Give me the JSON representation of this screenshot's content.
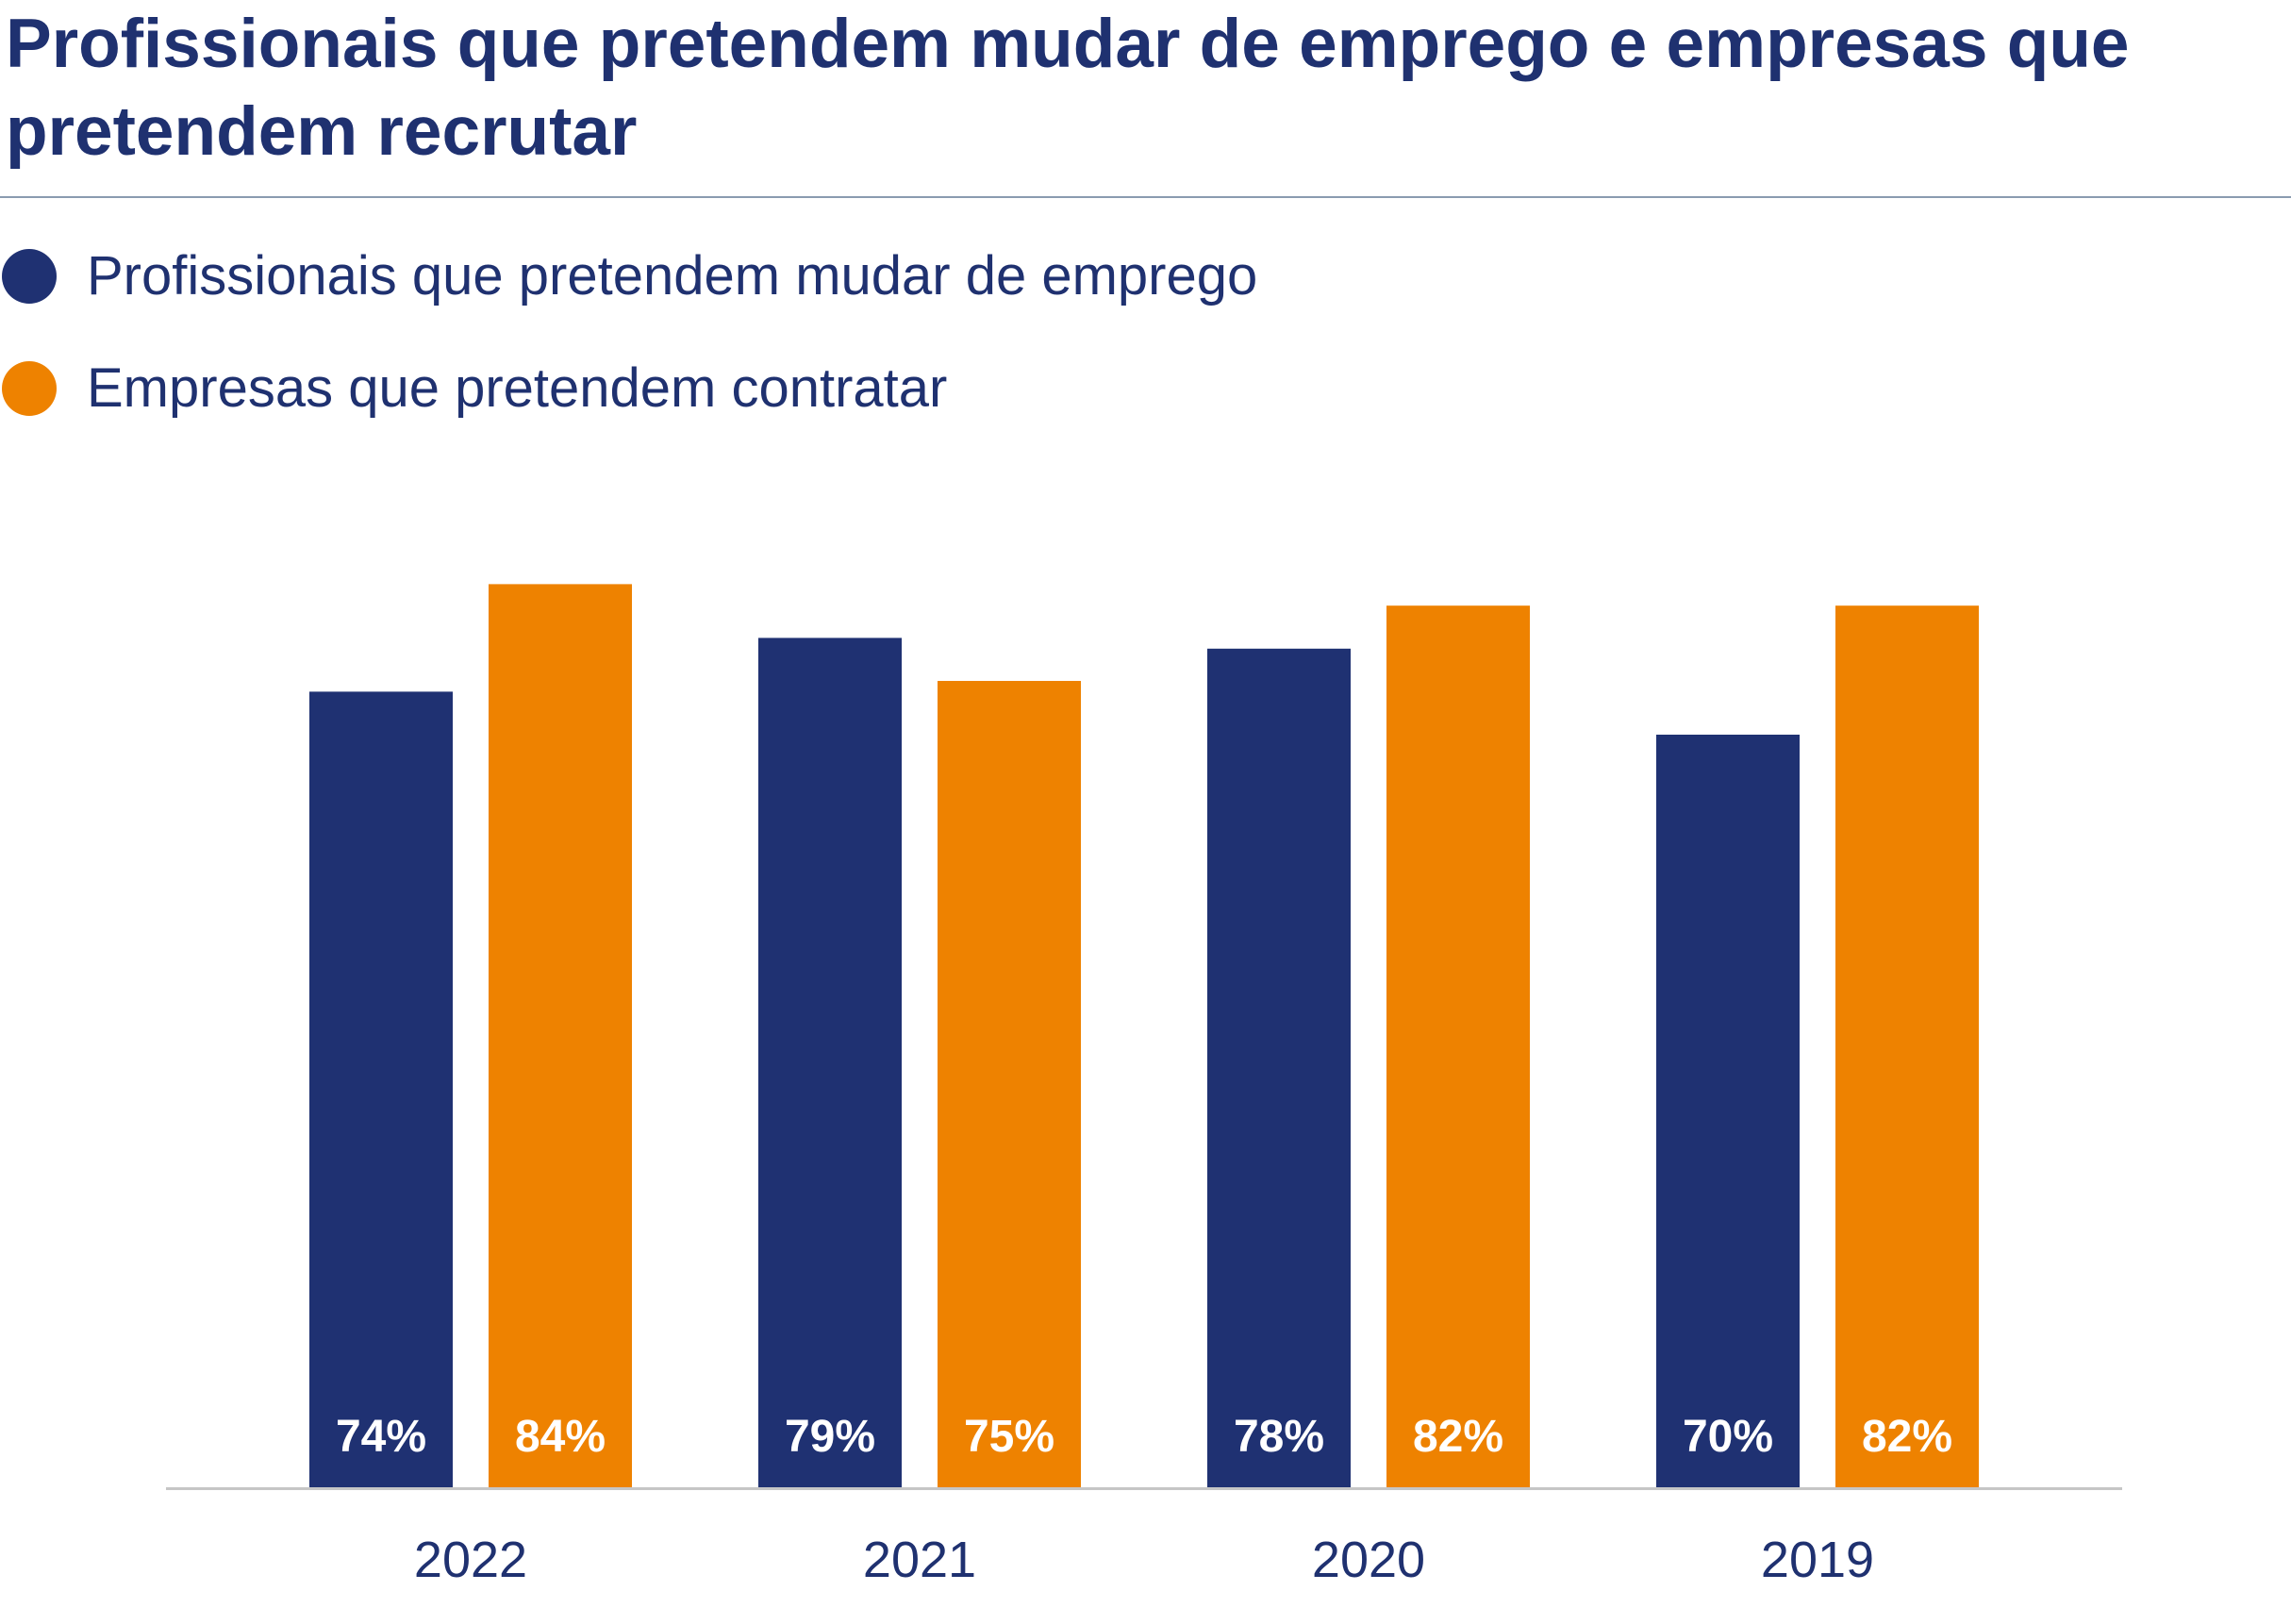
{
  "chart_data": {
    "type": "bar",
    "title": "Profissionais que pretendem mudar de emprego e empresas que pretendem recrutar",
    "categories": [
      "2022",
      "2021",
      "2020",
      "2019"
    ],
    "series": [
      {
        "name": "Profissionais que pretendem mudar de emprego",
        "color": "#1f3172",
        "values": [
          74,
          79,
          78,
          70
        ],
        "labels": [
          "74%",
          "79%",
          "78%",
          "70%"
        ]
      },
      {
        "name": "Empresas que pretendem contratar",
        "color": "#ee8200",
        "values": [
          84,
          75,
          82,
          82
        ],
        "labels": [
          "84%",
          "75%",
          "82%",
          "82%"
        ]
      }
    ],
    "xlabel": "",
    "ylabel": "",
    "ylim": [
      0,
      100
    ],
    "unit": "%",
    "grid": false,
    "legend_position": "top-left"
  },
  "colors": {
    "text": "#1f3170",
    "axis": "#c6c6c6",
    "rule": "#8a9bb0",
    "value_label": "#ffffff"
  }
}
